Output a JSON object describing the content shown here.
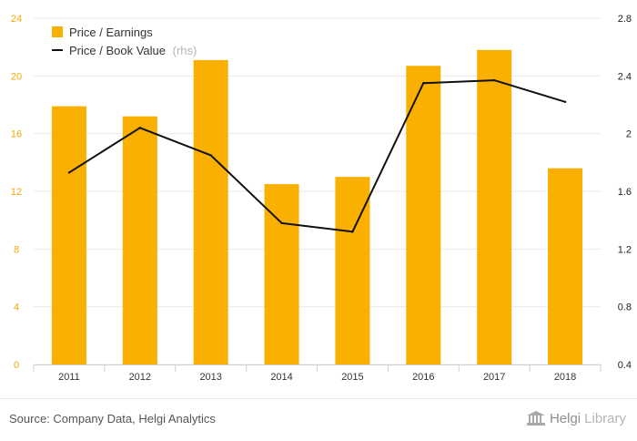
{
  "chart_data": {
    "type": "bar+line",
    "categories": [
      "2011",
      "2012",
      "2013",
      "2014",
      "2015",
      "2016",
      "2017",
      "2018"
    ],
    "series": [
      {
        "name": "Price / Earnings",
        "type": "bar",
        "axis": "left",
        "values": [
          17.9,
          17.2,
          21.1,
          12.5,
          13.0,
          20.7,
          21.8,
          13.6
        ]
      },
      {
        "name": "Price / Book Value",
        "rhs_tag": "(rhs)",
        "type": "line",
        "axis": "right",
        "values": [
          1.73,
          2.04,
          1.85,
          1.38,
          1.32,
          2.35,
          2.37,
          2.22
        ]
      }
    ],
    "left_axis": {
      "min": 0,
      "max": 24,
      "ticks": [
        "0",
        "4",
        "8",
        "12",
        "16",
        "20",
        "24"
      ]
    },
    "right_axis": {
      "min": 0.4,
      "max": 2.8,
      "ticks": [
        "0.4",
        "0.8",
        "1.2",
        "1.6",
        "2",
        "2.4",
        "2.8"
      ]
    },
    "grid": true,
    "legend_position": "top-left",
    "colors": {
      "bar": "#f9b000",
      "line": "#111111",
      "left_tick": "#f2a900",
      "right_tick": "#222222",
      "grid": "#e9e9e9"
    }
  },
  "footer": {
    "source": "Source: Company Data, Helgi Analytics",
    "brand_part1": "Helgi",
    "brand_part2": "Library"
  }
}
